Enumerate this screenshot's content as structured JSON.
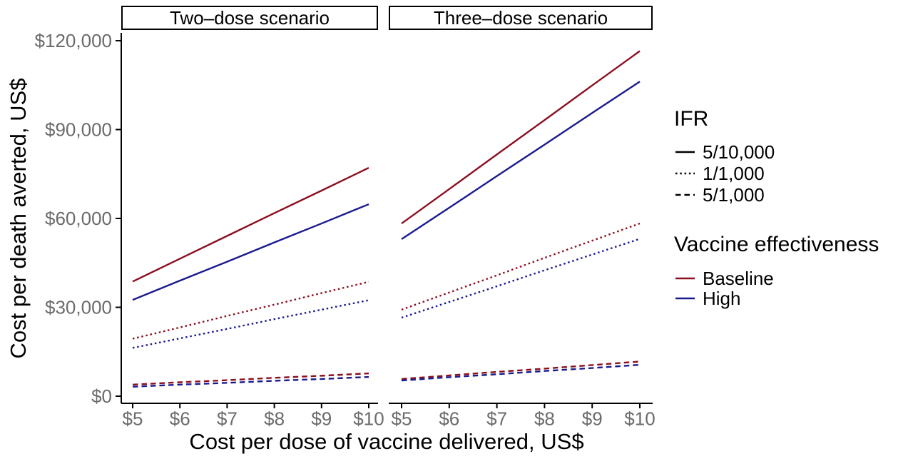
{
  "figure": {
    "y_axis_title": "Cost per death averted, US$",
    "x_axis_title": "Cost per dose of vaccine delivered, US$",
    "colors": {
      "baseline": "#8B0F1F",
      "high": "#1A1A8F",
      "axis": "#000000",
      "tick_label": "#6B6B6B",
      "background": "#FFFFFF"
    }
  },
  "legend": {
    "ifr": {
      "title": "IFR",
      "items": [
        {
          "label": "5/10,000",
          "linetype": "solid"
        },
        {
          "label": "1/1,000",
          "linetype": "dotted"
        },
        {
          "label": "5/1,000",
          "linetype": "dashed"
        }
      ]
    },
    "effectiveness": {
      "title": "Vaccine effectiveness",
      "items": [
        {
          "label": "Baseline",
          "color_key": "baseline"
        },
        {
          "label": "High",
          "color_key": "high"
        }
      ]
    }
  },
  "chart_data": {
    "type": "line",
    "x": [
      5,
      6,
      7,
      8,
      9,
      10
    ],
    "x_tick_labels": [
      "$5",
      "$6",
      "$7",
      "$8",
      "$9",
      "$10"
    ],
    "xlabel": "Cost per dose of vaccine delivered, US$",
    "ylabel": "Cost per death averted, US$",
    "y_ticks": [
      0,
      30000,
      60000,
      90000,
      120000
    ],
    "y_tick_labels": [
      "$0",
      "$30,000",
      "$60,000",
      "$90,000",
      "$120,000"
    ],
    "ylim": [
      0,
      122500
    ],
    "grid": false,
    "legend_position": "right",
    "facets": [
      {
        "label": "Two–dose scenario",
        "series": [
          {
            "ifr": "5/10,000",
            "effectiveness": "Baseline",
            "linetype": "solid",
            "color_key": "baseline",
            "values": [
              38700,
              46400,
              54100,
              61800,
              69400,
              77100
            ]
          },
          {
            "ifr": "5/10,000",
            "effectiveness": "High",
            "linetype": "solid",
            "color_key": "high",
            "values": [
              32500,
              39000,
              45400,
              51900,
              58300,
              64800
            ]
          },
          {
            "ifr": "1/1,000",
            "effectiveness": "Baseline",
            "linetype": "dotted",
            "color_key": "baseline",
            "values": [
              19400,
              23200,
              27100,
              30900,
              34800,
              38600
            ]
          },
          {
            "ifr": "1/1,000",
            "effectiveness": "High",
            "linetype": "dotted",
            "color_key": "high",
            "values": [
              16300,
              19500,
              22700,
              26000,
              29200,
              32400
            ]
          },
          {
            "ifr": "5/1,000",
            "effectiveness": "Baseline",
            "linetype": "dashed",
            "color_key": "baseline",
            "values": [
              3900,
              4700,
              5400,
              6200,
              6900,
              7700
            ]
          },
          {
            "ifr": "5/1,000",
            "effectiveness": "High",
            "linetype": "dashed",
            "color_key": "high",
            "values": [
              3200,
              3900,
              4500,
              5200,
              5800,
              6500
            ]
          }
        ]
      },
      {
        "label": "Three–dose scenario",
        "series": [
          {
            "ifr": "5/10,000",
            "effectiveness": "Baseline",
            "linetype": "solid",
            "color_key": "baseline",
            "values": [
              58300,
              69900,
              81600,
              93200,
              104900,
              116500
            ]
          },
          {
            "ifr": "5/10,000",
            "effectiveness": "High",
            "linetype": "solid",
            "color_key": "high",
            "values": [
              53000,
              63600,
              74300,
              84900,
              95600,
              106200
            ]
          },
          {
            "ifr": "1/1,000",
            "effectiveness": "Baseline",
            "linetype": "dotted",
            "color_key": "baseline",
            "values": [
              29200,
              35000,
              40800,
              46700,
              52500,
              58300
            ]
          },
          {
            "ifr": "1/1,000",
            "effectiveness": "High",
            "linetype": "dotted",
            "color_key": "high",
            "values": [
              26500,
              31800,
              37100,
              42500,
              47800,
              53100
            ]
          },
          {
            "ifr": "5/1,000",
            "effectiveness": "Baseline",
            "linetype": "dashed",
            "color_key": "baseline",
            "values": [
              5800,
              7000,
              8200,
              9300,
              10500,
              11700
            ]
          },
          {
            "ifr": "5/1,000",
            "effectiveness": "High",
            "linetype": "dashed",
            "color_key": "high",
            "values": [
              5300,
              6400,
              7400,
              8500,
              9500,
              10600
            ]
          }
        ]
      }
    ]
  }
}
